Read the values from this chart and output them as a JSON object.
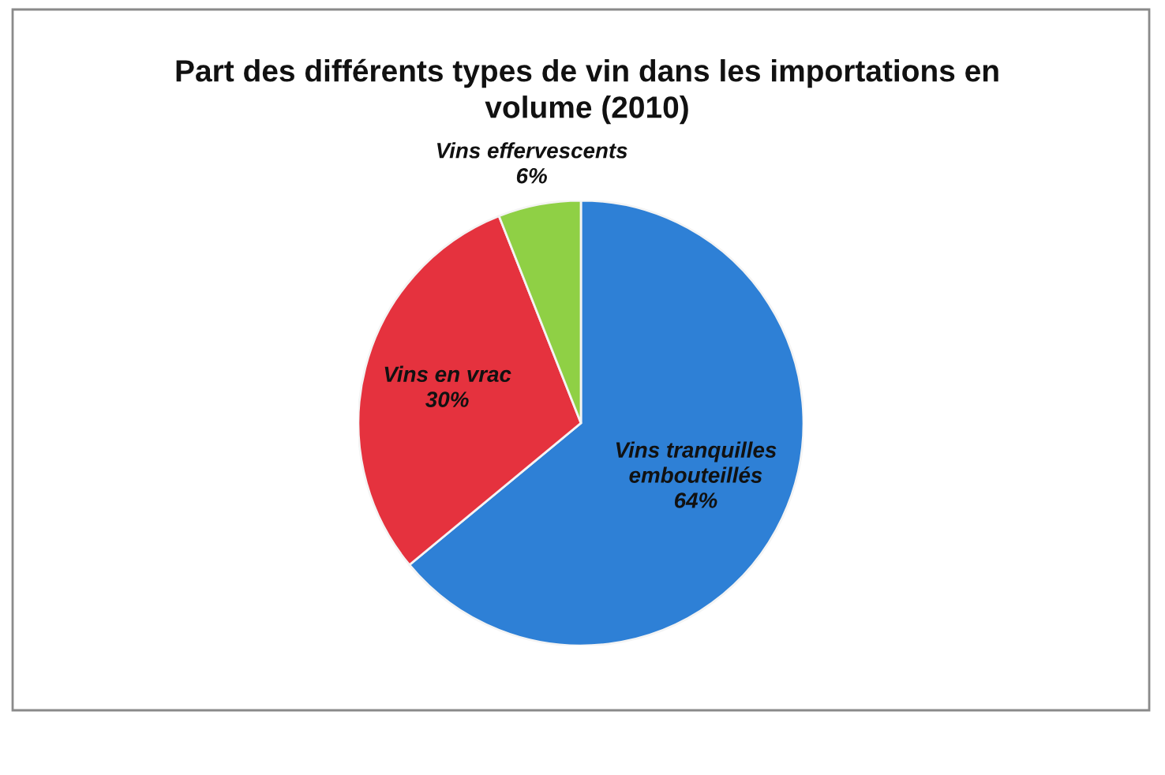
{
  "chart_data": {
    "type": "pie",
    "title": "Part des différents types de vin dans les importations en volume (2010)",
    "categories": [
      "Vins tranquilles embouteillés",
      "Vins en vrac",
      "Vins effervescents"
    ],
    "values": [
      64,
      30,
      6
    ],
    "colors": [
      "#2e80d6",
      "#e5323e",
      "#8fd045"
    ],
    "value_labels": [
      "64%",
      "30%",
      "6%"
    ]
  }
}
